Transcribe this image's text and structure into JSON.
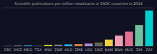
{
  "chart_data": {
    "type": "bar",
    "title": "Scientific publications per million inhabitants in SADC countries in 2014",
    "categories": [
      "DRC",
      "MOZ",
      "MDG",
      "TZA",
      "MWI",
      "ZWE",
      "AGO",
      "ZMB",
      "LSO",
      "SWZ",
      "NAM",
      "BWA",
      "MUS",
      "ZIM",
      "ZAF"
    ],
    "values": [
      1.5,
      2.5,
      3,
      4,
      5,
      6,
      7,
      8,
      10,
      14,
      25,
      40,
      55,
      80,
      135
    ],
    "colors": [
      "#555555",
      "#888888",
      "#29abe2",
      "#333333",
      "#d4d400",
      "#777777",
      "#29abe2",
      "#d08030",
      "#aa88cc",
      "#666655",
      "#f0cc44",
      "#f0a0b0",
      "#e07090",
      "#70c0a0",
      "#00cccc"
    ],
    "ylim": [
      0,
      145
    ],
    "grid": false,
    "tick_labels": "x"
  }
}
